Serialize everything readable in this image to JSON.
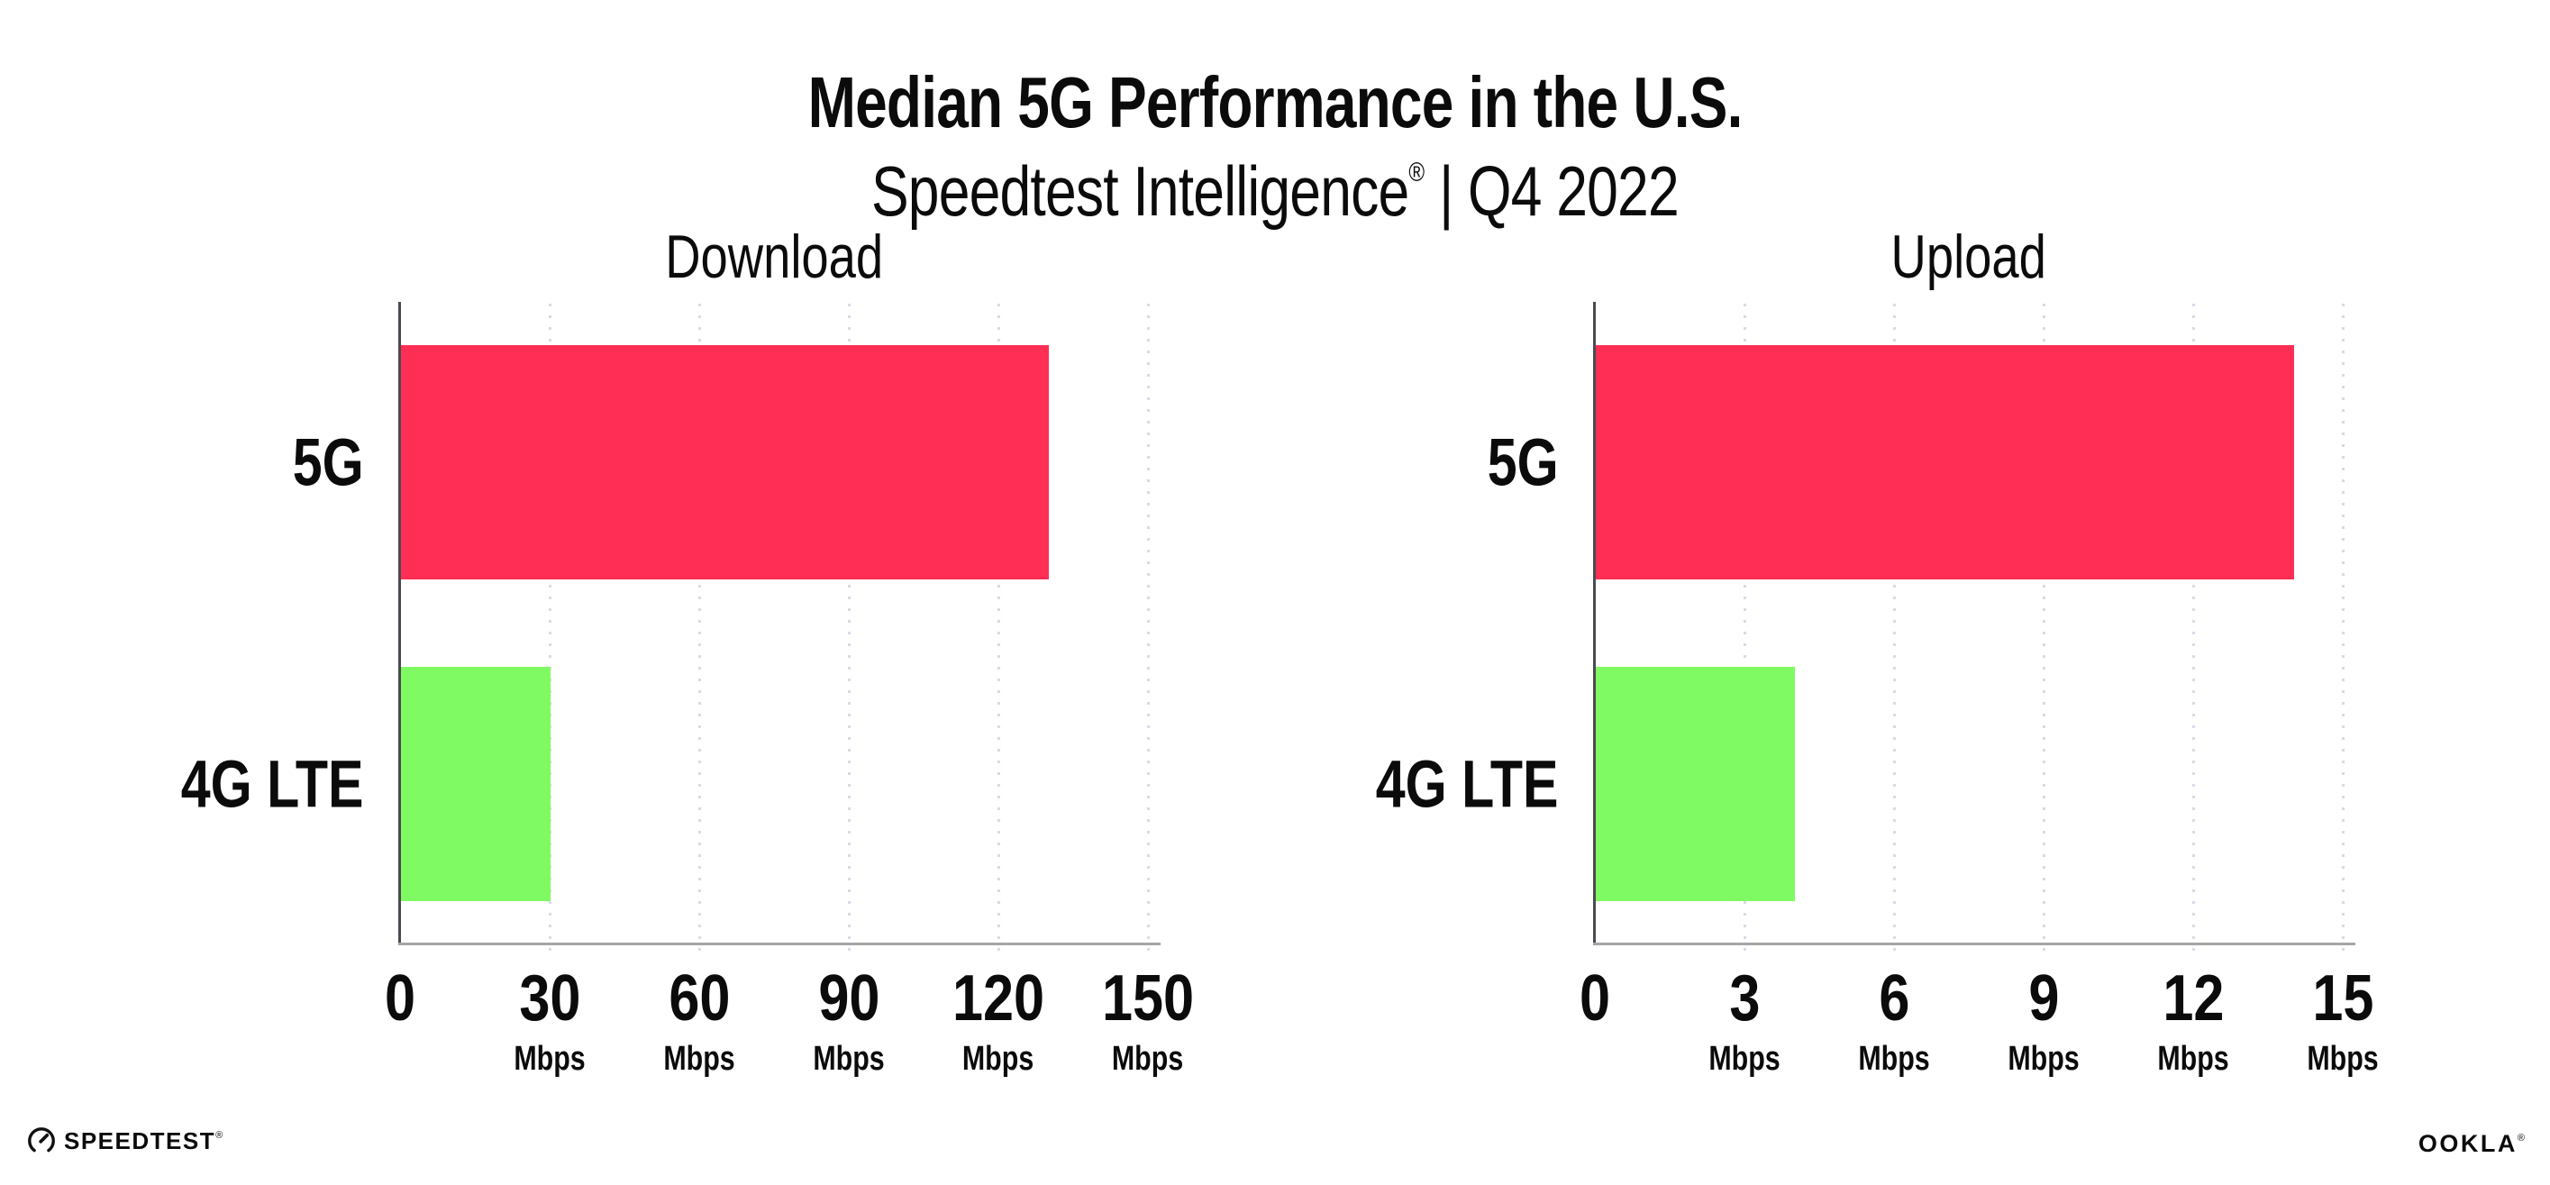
{
  "header": {
    "title": "Median 5G Performance in the U.S.",
    "subtitle_brand": "Speedtest Intelligence",
    "subtitle_reg": "®",
    "subtitle_rest": "| Q4 2022"
  },
  "chart_data": [
    {
      "type": "bar",
      "orientation": "horizontal",
      "title": "Download",
      "categories": [
        "5G",
        "4G LTE"
      ],
      "values": [
        130,
        30
      ],
      "unit": "Mbps",
      "xlim": [
        0,
        150
      ],
      "xticks": [
        0,
        30,
        60,
        90,
        120,
        150
      ],
      "bar_colors": [
        "#ff2e55",
        "#80fa62"
      ],
      "grid": "dotted-vertical",
      "gridline_color": "#d9dae8"
    },
    {
      "type": "bar",
      "orientation": "horizontal",
      "title": "Upload",
      "categories": [
        "5G",
        "4G LTE"
      ],
      "values": [
        14,
        4
      ],
      "unit": "Mbps",
      "xlim": [
        0,
        15
      ],
      "xticks": [
        0,
        3,
        6,
        9,
        12,
        15
      ],
      "bar_colors": [
        "#ff2e55",
        "#80fa62"
      ],
      "grid": "dotted-vertical",
      "gridline_color": "#d9dae8"
    }
  ],
  "footer": {
    "speedtest_logo_text": "SPEEDTEST",
    "speedtest_mark": "®",
    "ookla_logo_text": "OOKLA",
    "ookla_mark": "®"
  }
}
